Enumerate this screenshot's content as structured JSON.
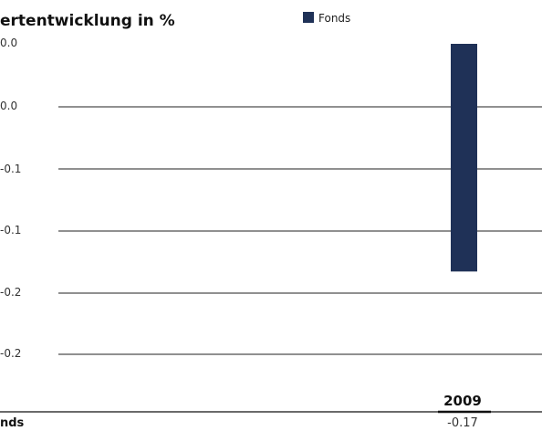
{
  "chart_data": {
    "type": "bar",
    "title": "ertentwicklung in %",
    "legend": {
      "label": "Fonds",
      "placement": "top"
    },
    "categories": [
      "2009"
    ],
    "series": [
      {
        "name": "Fonds",
        "values": [
          -0.17
        ],
        "color": "#1f3157"
      }
    ],
    "ytick_labels": [
      "0.0",
      "0.0",
      "-0.1",
      "-0.1",
      "-0.2",
      "-0.2"
    ],
    "ylim": [
      -0.25,
      0.05
    ],
    "grid": true
  },
  "table": {
    "header": "2009",
    "row_label": "nds",
    "row_value": "-0.17"
  }
}
